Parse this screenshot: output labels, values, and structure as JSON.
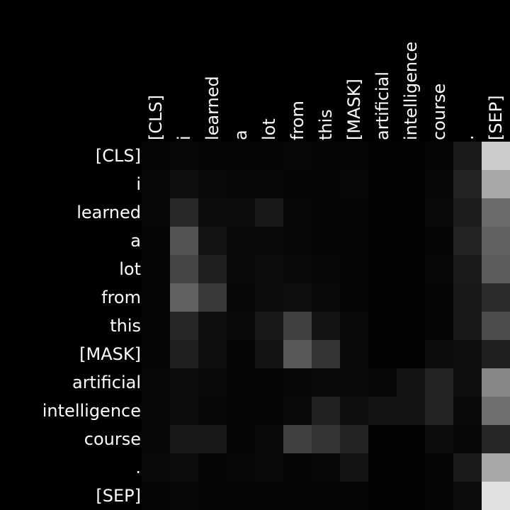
{
  "chart_data": {
    "type": "heatmap",
    "colormap": "grayscale",
    "background": "#000000",
    "x_tokens": [
      "[CLS]",
      "i",
      "learned",
      "a",
      "lot",
      "from",
      "this",
      "[MASK]",
      "artificial",
      "intelligence",
      "course",
      ".",
      "[SEP]"
    ],
    "y_tokens": [
      "[CLS]",
      "i",
      "learned",
      "a",
      "lot",
      "from",
      "this",
      "[MASK]",
      "artificial",
      "intelligence",
      "course",
      ".",
      "[SEP]"
    ],
    "values": [
      [
        0.02,
        0.03,
        0.02,
        0.02,
        0.02,
        0.03,
        0.02,
        0.02,
        0.01,
        0.01,
        0.02,
        0.1,
        0.8
      ],
      [
        0.03,
        0.06,
        0.04,
        0.03,
        0.03,
        0.02,
        0.02,
        0.03,
        0.01,
        0.01,
        0.03,
        0.14,
        0.66
      ],
      [
        0.03,
        0.16,
        0.05,
        0.05,
        0.09,
        0.03,
        0.02,
        0.02,
        0.01,
        0.01,
        0.04,
        0.11,
        0.42
      ],
      [
        0.02,
        0.33,
        0.08,
        0.04,
        0.04,
        0.03,
        0.02,
        0.02,
        0.01,
        0.01,
        0.02,
        0.14,
        0.38
      ],
      [
        0.02,
        0.27,
        0.12,
        0.04,
        0.05,
        0.04,
        0.03,
        0.02,
        0.01,
        0.01,
        0.03,
        0.1,
        0.36
      ],
      [
        0.02,
        0.38,
        0.22,
        0.03,
        0.05,
        0.06,
        0.04,
        0.02,
        0.01,
        0.01,
        0.02,
        0.09,
        0.17
      ],
      [
        0.02,
        0.15,
        0.06,
        0.04,
        0.09,
        0.25,
        0.07,
        0.04,
        0.01,
        0.01,
        0.02,
        0.09,
        0.3
      ],
      [
        0.02,
        0.12,
        0.06,
        0.02,
        0.08,
        0.34,
        0.2,
        0.04,
        0.01,
        0.01,
        0.05,
        0.06,
        0.12
      ],
      [
        0.03,
        0.05,
        0.04,
        0.02,
        0.02,
        0.03,
        0.04,
        0.04,
        0.03,
        0.07,
        0.14,
        0.06,
        0.53
      ],
      [
        0.03,
        0.05,
        0.03,
        0.02,
        0.02,
        0.04,
        0.13,
        0.06,
        0.08,
        0.08,
        0.14,
        0.04,
        0.44
      ],
      [
        0.03,
        0.09,
        0.09,
        0.02,
        0.04,
        0.25,
        0.2,
        0.14,
        0.01,
        0.01,
        0.05,
        0.03,
        0.15
      ],
      [
        0.04,
        0.05,
        0.02,
        0.03,
        0.04,
        0.02,
        0.03,
        0.07,
        0.01,
        0.01,
        0.02,
        0.1,
        0.66
      ],
      [
        0.02,
        0.03,
        0.02,
        0.02,
        0.02,
        0.02,
        0.02,
        0.02,
        0.01,
        0.01,
        0.02,
        0.05,
        0.88
      ]
    ]
  }
}
